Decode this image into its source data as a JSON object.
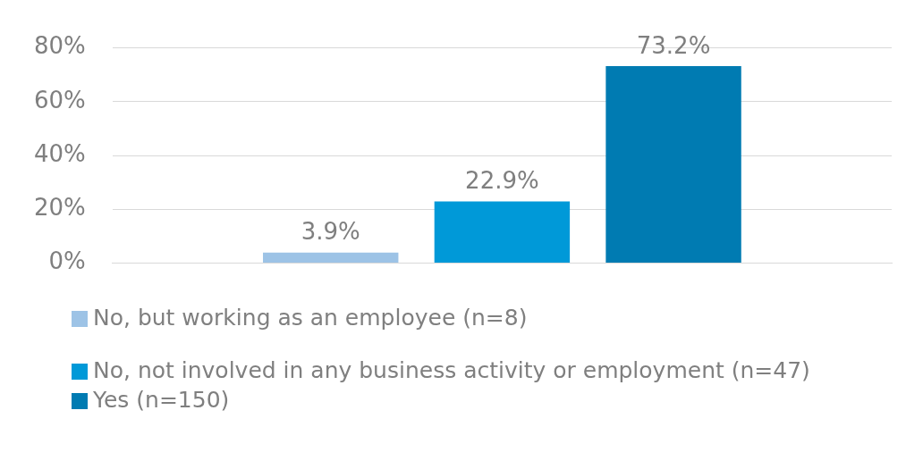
{
  "chart_data": {
    "type": "bar",
    "categories": [
      null
    ],
    "series": [
      {
        "name": "No, but working as an employee (n=8)",
        "color": "#9dc3e6",
        "values": [
          3.9
        ],
        "value_labels": [
          "3.9%"
        ]
      },
      {
        "name": "No, not involved in any business activity or employment (n=47)",
        "color": "#0099d8",
        "values": [
          22.9
        ],
        "value_labels": [
          "22.9%"
        ]
      },
      {
        "name": "Yes (n=150)",
        "color": "#007bb2",
        "values": [
          73.2
        ],
        "value_labels": [
          "73.2%"
        ]
      }
    ],
    "ylim": [
      0,
      80
    ],
    "yticks": [
      {
        "value": 0,
        "label": "0%"
      },
      {
        "value": 20,
        "label": "20%"
      },
      {
        "value": 40,
        "label": "40%"
      },
      {
        "value": 60,
        "label": "60%"
      },
      {
        "value": 80,
        "label": "80%"
      }
    ],
    "grid": "y",
    "legend": "bottom"
  }
}
